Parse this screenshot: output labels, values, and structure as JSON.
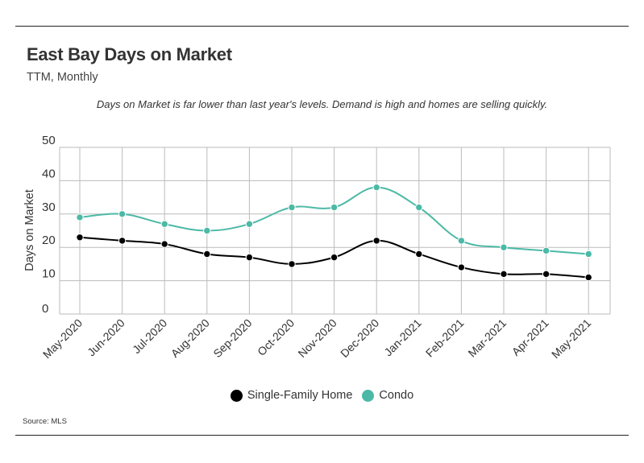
{
  "header": {
    "title": "East Bay Days on Market",
    "subtitle": "TTM, Monthly",
    "note": "Days on Market is far lower than last year's levels. Demand is high and homes are selling quickly."
  },
  "footer": {
    "source": "Source:  MLS"
  },
  "chart_data": {
    "type": "line",
    "categories": [
      "May-2020",
      "Jun-2020",
      "Jul-2020",
      "Aug-2020",
      "Sep-2020",
      "Oct-2020",
      "Nov-2020",
      "Dec-2020",
      "Jan-2021",
      "Feb-2021",
      "Mar-2021",
      "Apr-2021",
      "May-2021"
    ],
    "ylabel": "Days on Market",
    "xlabel": "",
    "ylim": [
      0,
      50
    ],
    "yticks": [
      0,
      10,
      20,
      30,
      40,
      50
    ],
    "grid": true,
    "legend_position": "bottom",
    "series": [
      {
        "name": "Single-Family Home",
        "color": "#000000",
        "values": [
          23,
          22,
          21,
          18,
          17,
          15,
          17,
          22,
          18,
          14,
          12,
          12,
          11
        ]
      },
      {
        "name": "Condo",
        "color": "#4cb9a6",
        "values": [
          29,
          30,
          27,
          25,
          27,
          32,
          32,
          38,
          32,
          22,
          20,
          19,
          18
        ]
      }
    ]
  }
}
